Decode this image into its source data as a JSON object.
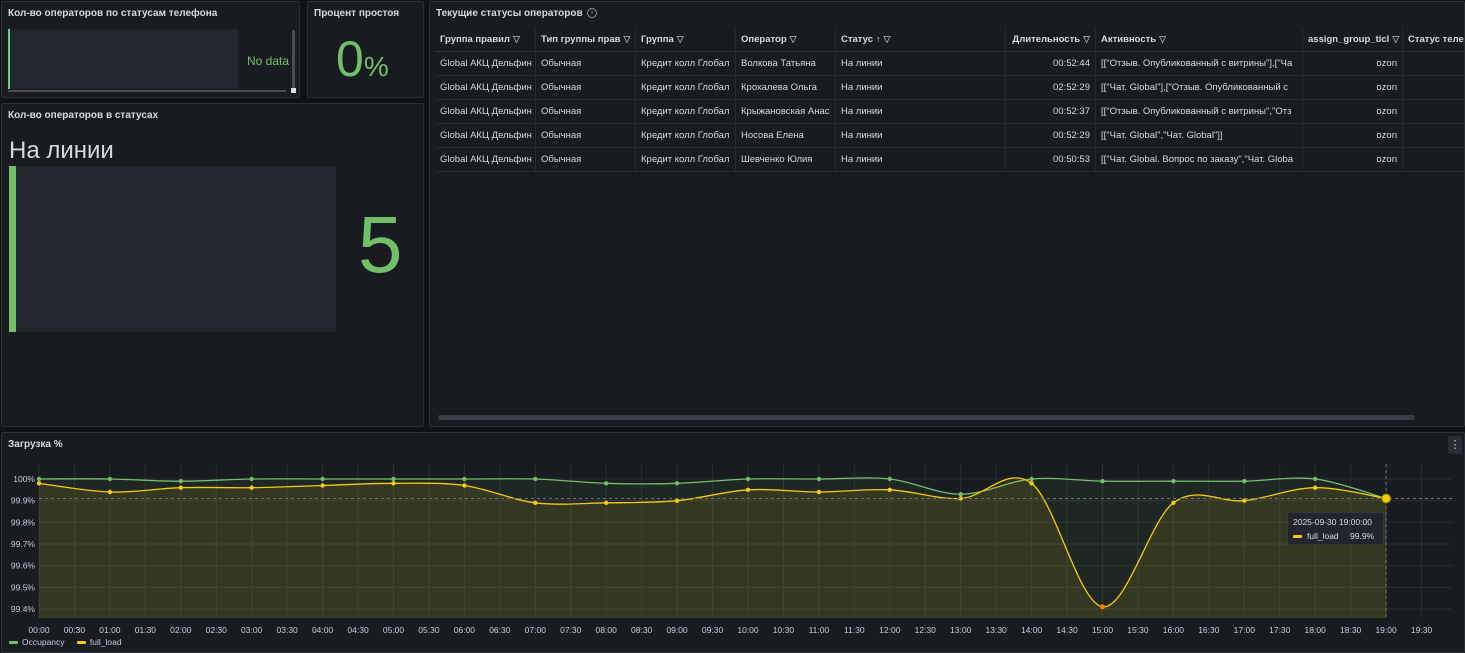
{
  "panels": {
    "phone_status": {
      "title": "Кол-во операторов по статусам телефона",
      "no_data": "No data"
    },
    "idle": {
      "title": "Процент простоя",
      "value": "0",
      "unit": "%"
    },
    "status_count": {
      "title": "Кол-во операторов в статусах",
      "status_name": "На линии",
      "value": "5"
    },
    "table": {
      "title": "Текущие статусы операторов",
      "columns": [
        "Группа правил",
        "Тип группы прав",
        "Группа",
        "Оператор",
        "Статус",
        "Длительность",
        "Активность",
        "assign_group_ticl",
        "Статус теле"
      ],
      "rows": [
        [
          "Global АКЦ Дельфин",
          "Обычная",
          "Кредит колл Глобал",
          "Волкова Татьяна",
          "На линии",
          "00:52:44",
          "[[\"Отзыв. Опубликованный с витрины\"],[\"Ча",
          "ozon",
          ""
        ],
        [
          "Global АКЦ Дельфин",
          "Обычная",
          "Кредит колл Глобал",
          "Крохалева Ольга",
          "На линии",
          "02:52:29",
          "[[\"Чат. Global\"],[\"Отзыв. Опубликованный с",
          "ozon",
          ""
        ],
        [
          "Global АКЦ Дельфин",
          "Обычная",
          "Кредит колл Глобал",
          "Крыжановская Анас",
          "На линии",
          "00:52:37",
          "[[\"Отзыв. Опубликованный с витрины\",\"Отз",
          "ozon",
          ""
        ],
        [
          "Global АКЦ Дельфин",
          "Обычная",
          "Кредит колл Глобал",
          "Носова Елена",
          "На линии",
          "00:52:29",
          "[[\"Чат. Global\",\"Чат. Global\"]]",
          "ozon",
          ""
        ],
        [
          "Global АКЦ Дельфин",
          "Обычная",
          "Кредит колл Глобал",
          "Шевченко Юлия",
          "На линии",
          "00:50:53",
          "[[\"Чат. Global. Вопрос по заказу\",\"Чат. Globa",
          "ozon",
          ""
        ]
      ]
    },
    "chart": {
      "title": "Загрузка %",
      "menu_icon": "kebab-menu-icon"
    }
  },
  "tooltip": {
    "time": "2025-09-30 19:00:00",
    "series": "full_load",
    "value": "99.9%"
  },
  "legend": [
    {
      "name": "Occupancy",
      "color": "#73bf69"
    },
    {
      "name": "full_load",
      "color": "#f2cc0c"
    }
  ],
  "chart_data": {
    "type": "line",
    "title": "Загрузка %",
    "x": [
      "00:00",
      "01:00",
      "02:00",
      "03:00",
      "04:00",
      "05:00",
      "06:00",
      "07:00",
      "08:00",
      "09:00",
      "10:00",
      "11:00",
      "12:00",
      "13:00",
      "14:00",
      "15:00",
      "16:00",
      "17:00",
      "18:00",
      "19:00"
    ],
    "x_ticks": [
      "00:00",
      "00:30",
      "01:00",
      "01:30",
      "02:00",
      "02:30",
      "03:00",
      "03:30",
      "04:00",
      "04:30",
      "05:00",
      "05:30",
      "06:00",
      "06:30",
      "07:00",
      "07:30",
      "08:00",
      "08:30",
      "09:00",
      "09:30",
      "10:00",
      "10:30",
      "11:00",
      "11:30",
      "12:00",
      "12:30",
      "13:00",
      "13:30",
      "14:00",
      "14:30",
      "15:00",
      "15:30",
      "16:00",
      "16:30",
      "17:00",
      "17:30",
      "18:00",
      "18:30",
      "19:00",
      "19:30"
    ],
    "y_ticks": [
      "100%",
      "99.9%",
      "99.8%",
      "99.7%",
      "99.6%",
      "99.5%",
      "99.4%"
    ],
    "ylim": [
      99.38,
      100.02
    ],
    "series": [
      {
        "name": "Occupancy",
        "color": "#73bf69",
        "values": [
          100.0,
          100.0,
          99.99,
          100.0,
          100.0,
          100.0,
          100.0,
          100.0,
          99.98,
          99.98,
          100.0,
          100.0,
          100.0,
          99.93,
          100.0,
          99.99,
          99.99,
          99.99,
          100.0,
          99.91
        ]
      },
      {
        "name": "full_load",
        "color": "#f2cc0c",
        "values": [
          99.98,
          99.94,
          99.96,
          99.96,
          99.97,
          99.98,
          99.97,
          99.89,
          99.89,
          99.9,
          99.95,
          99.94,
          99.95,
          99.91,
          99.98,
          99.41,
          99.89,
          99.9,
          99.96,
          99.91
        ]
      }
    ],
    "grid": true,
    "legend_position": "bottom-left"
  }
}
